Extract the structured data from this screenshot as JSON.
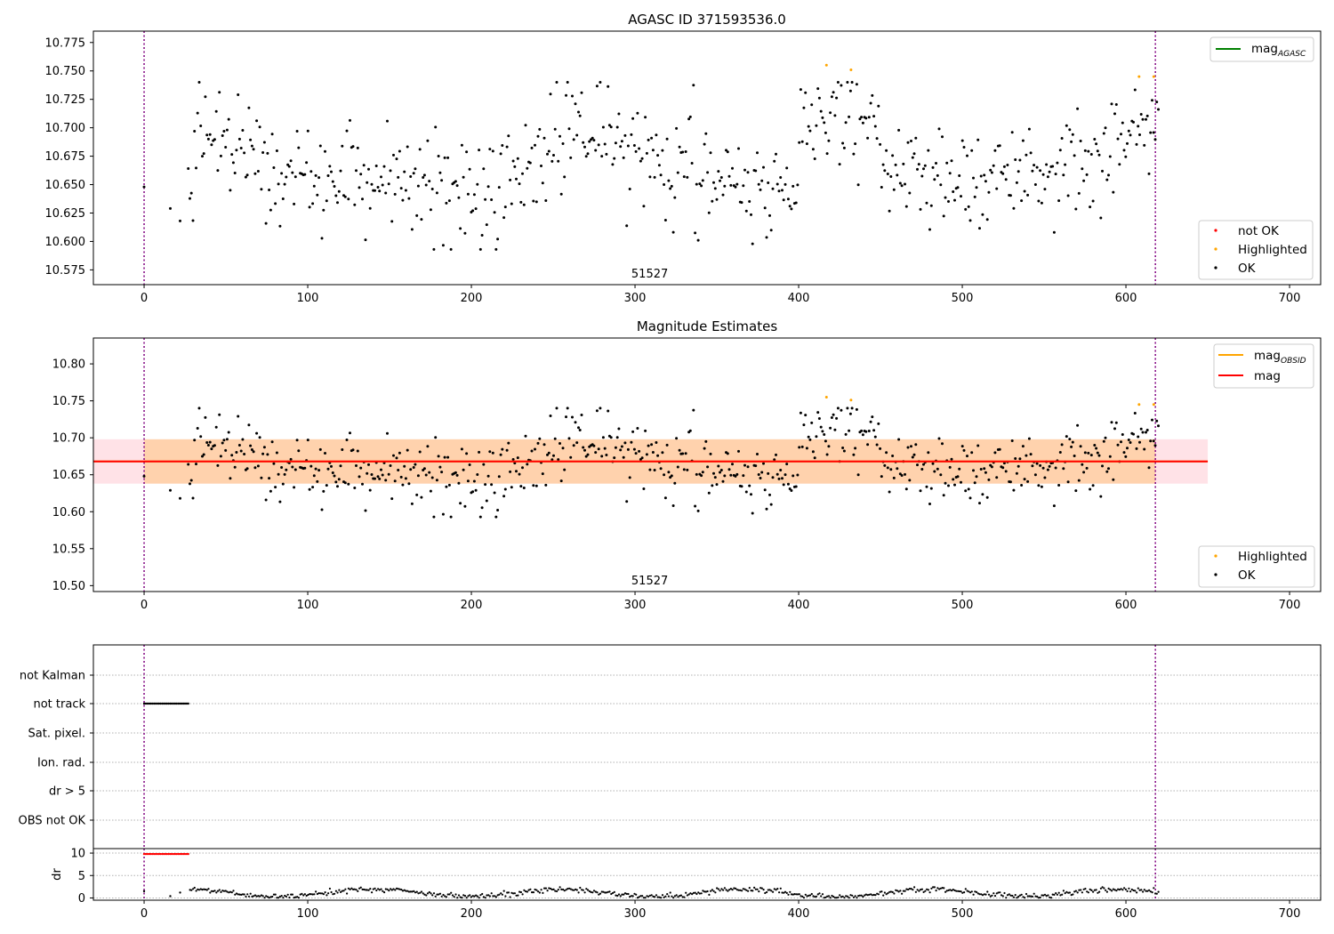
{
  "chart_data": [
    {
      "type": "scatter",
      "title": "AGASC ID 371593536.0",
      "xlim": [
        -31,
        719
      ],
      "ylim": [
        10.562,
        10.785
      ],
      "xticks": [
        0,
        100,
        200,
        300,
        400,
        500,
        600,
        700
      ],
      "xtick_labels": [
        "0",
        "100",
        "200",
        "300",
        "400",
        "500",
        "600",
        "700"
      ],
      "yticks": [
        10.575,
        10.6,
        10.625,
        10.65,
        10.675,
        10.7,
        10.725,
        10.75,
        10.775
      ],
      "ytick_labels": [
        "10.575",
        "10.600",
        "10.625",
        "10.650",
        "10.675",
        "10.700",
        "10.725",
        "10.750",
        "10.775"
      ],
      "obsid_lines": [
        0,
        618
      ],
      "obsid_label": "51527",
      "obsid_label_x": 309,
      "legend_lines": [
        {
          "label_main": "mag",
          "label_sub": "AGASC",
          "color": "#008000"
        }
      ],
      "legend_markers": [
        {
          "label": "not OK",
          "color": "#ff0000"
        },
        {
          "label": "Highlighted",
          "color": "#ffa500"
        },
        {
          "label": "OK",
          "color": "#000000"
        }
      ],
      "series": [
        {
          "name": "OK",
          "color": "#000000",
          "points": "scatter"
        },
        {
          "name": "Highlighted",
          "color": "#ffa500",
          "points": [
            [
              417,
              10.755
            ],
            [
              432,
              10.751
            ],
            [
              608,
              10.745
            ],
            [
              617,
              10.745
            ]
          ]
        }
      ]
    },
    {
      "type": "scatter",
      "title": "Magnitude Estimates",
      "xlim": [
        -31,
        719
      ],
      "ylim": [
        10.492,
        10.835
      ],
      "xticks": [
        0,
        100,
        200,
        300,
        400,
        500,
        600,
        700
      ],
      "xtick_labels": [
        "0",
        "100",
        "200",
        "300",
        "400",
        "500",
        "600",
        "700"
      ],
      "yticks": [
        10.5,
        10.55,
        10.6,
        10.65,
        10.7,
        10.75,
        10.8
      ],
      "ytick_labels": [
        "10.50",
        "10.55",
        "10.60",
        "10.65",
        "10.70",
        "10.75",
        "10.80"
      ],
      "obsid_lines": [
        0,
        618
      ],
      "obsid_label": "51527",
      "obsid_label_x": 309,
      "mag": 10.668,
      "mag_band": [
        10.638,
        10.698
      ],
      "band_x": [
        -31,
        650
      ],
      "legend_lines": [
        {
          "label_main": "mag",
          "label_sub": "OBSID",
          "color": "#ffa500"
        },
        {
          "label_main": "mag",
          "label_sub": "",
          "color": "#ff0000"
        }
      ],
      "legend_markers": [
        {
          "label": "Highlighted",
          "color": "#ffa500"
        },
        {
          "label": "OK",
          "color": "#000000"
        }
      ]
    },
    {
      "type": "scatter",
      "title": "",
      "xlim": [
        -31,
        719
      ],
      "xticks": [
        0,
        100,
        200,
        300,
        400,
        500,
        600,
        700
      ],
      "xtick_labels": [
        "0",
        "100",
        "200",
        "300",
        "400",
        "500",
        "600",
        "700"
      ],
      "flag_labels": [
        "not Kalman",
        "not track",
        "Sat. pixel.",
        "Ion. rad.",
        "dr > 5",
        "OBS not OK"
      ],
      "not_track_x_range": [
        0,
        27
      ],
      "dr": {
        "ylabel": "dr",
        "yticks": [
          0,
          5,
          10
        ],
        "ytick_labels": [
          "0",
          "5",
          "10"
        ],
        "ylim": [
          -0.5,
          11
        ],
        "clipped_value": 9.8,
        "clipped_x_range": [
          0,
          27
        ]
      }
    }
  ]
}
